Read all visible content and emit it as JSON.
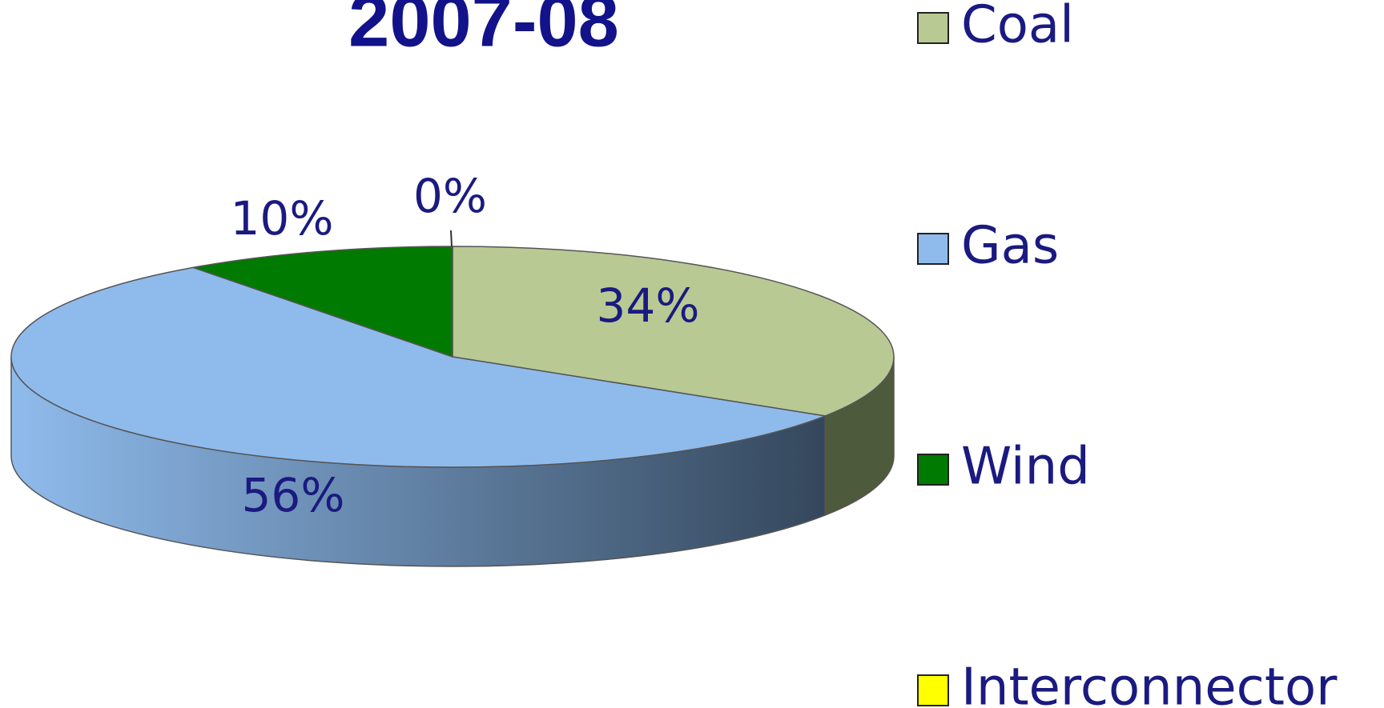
{
  "chart_data": {
    "type": "pie",
    "title": "2007-08",
    "categories": [
      "Coal",
      "Gas",
      "Wind",
      "Interconnector"
    ],
    "values": [
      34,
      56,
      10,
      0
    ],
    "value_labels": [
      "34%",
      "56%",
      "10%",
      "0%"
    ],
    "colors": [
      "#b8c994",
      "#8fbbec",
      "#007a00",
      "#ffff00"
    ],
    "legend": "right"
  }
}
